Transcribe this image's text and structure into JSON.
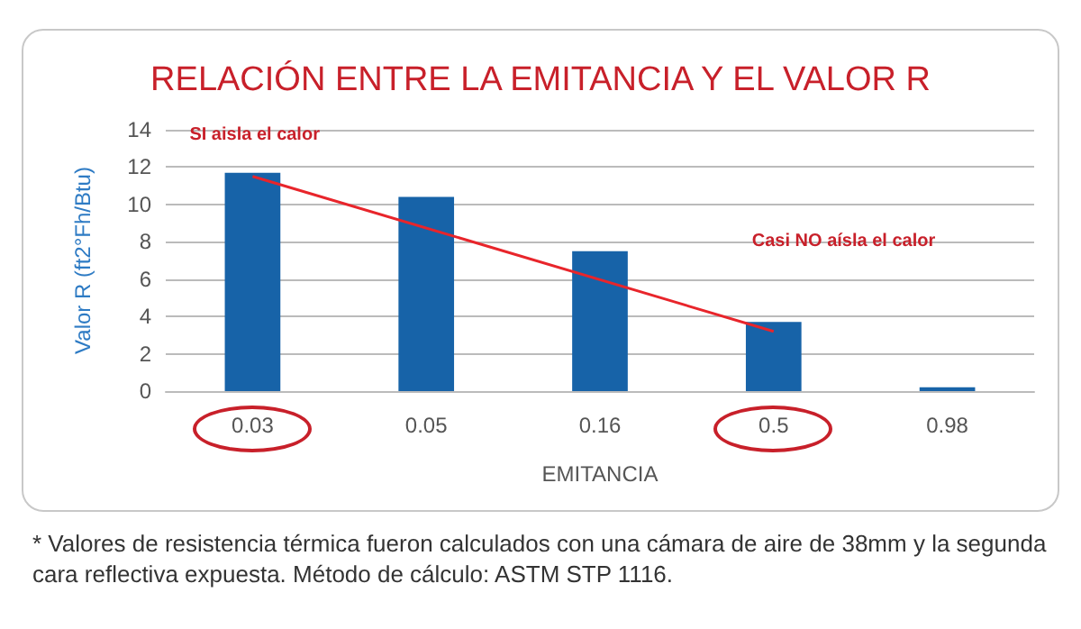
{
  "chart_data": {
    "type": "bar",
    "title": "RELACIÓN ENTRE LA EMITANCIA Y EL VALOR R",
    "xlabel": "EMITANCIA",
    "ylabel": "Valor R (ft2°Fh/Btu)",
    "categories": [
      "0.03",
      "0.05",
      "0.16",
      "0.5",
      "0.98"
    ],
    "series": [
      {
        "color": "#1763a8",
        "values": [
          11.7,
          10.4,
          7.5,
          3.7,
          0.2
        ]
      },
      {
        "type": "line",
        "color": "#e8252b",
        "x": [
          "0.03",
          "0.5"
        ],
        "values": [
          11.5,
          3.2
        ]
      }
    ],
    "ylim": [
      0,
      14
    ],
    "yticks": [
      0,
      2,
      4,
      6,
      8,
      10,
      12,
      14
    ],
    "grid": "y",
    "annotations": [
      "SI aisla el calor",
      "Casi NO aísla el calor",
      "* Valores de resistencia térmica fueron calculados con una cámara de aire de 38mm y la segunda cara reflectiva expuesta. Método de cálculo: ASTM STP 1116."
    ]
  }
}
